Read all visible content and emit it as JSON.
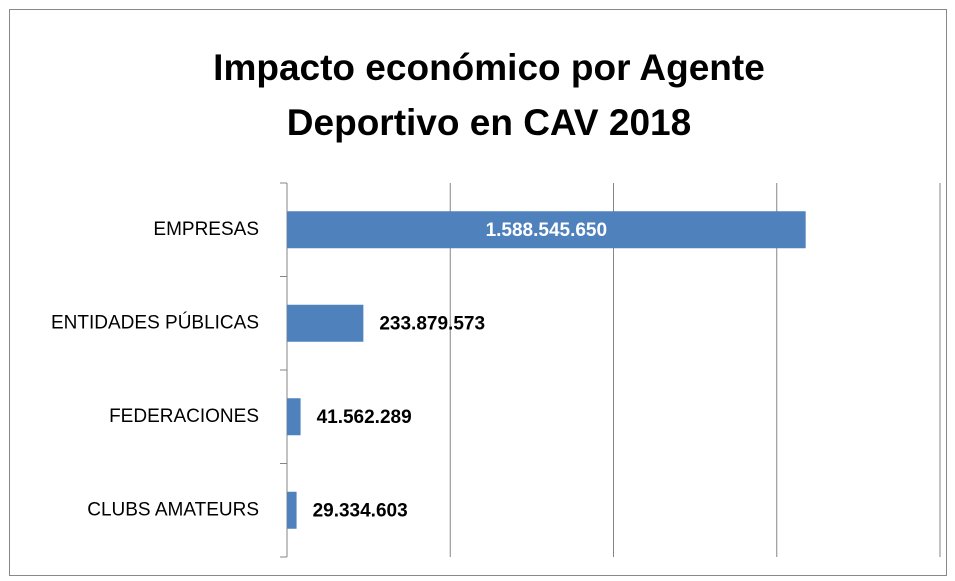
{
  "chart_data": {
    "type": "hbar",
    "title": [
      "Impacto económico por Agente",
      "Deportivo en CAV 2018"
    ],
    "categories": [
      "EMPRESAS",
      "ENTIDADES PÚBLICAS",
      "FEDERACIONES",
      "CLUBS AMATEURS"
    ],
    "values": [
      1588545650,
      233879573,
      41562289,
      29334603
    ],
    "value_labels": [
      "1.588.545.650",
      "233.879.573",
      "41.562.289",
      "29.334.603"
    ],
    "color": "#4f81bd",
    "xlim": [
      0,
      2000000000
    ],
    "xticks": [
      0,
      500000000,
      1000000000,
      1500000000,
      2000000000
    ],
    "grid": true
  }
}
